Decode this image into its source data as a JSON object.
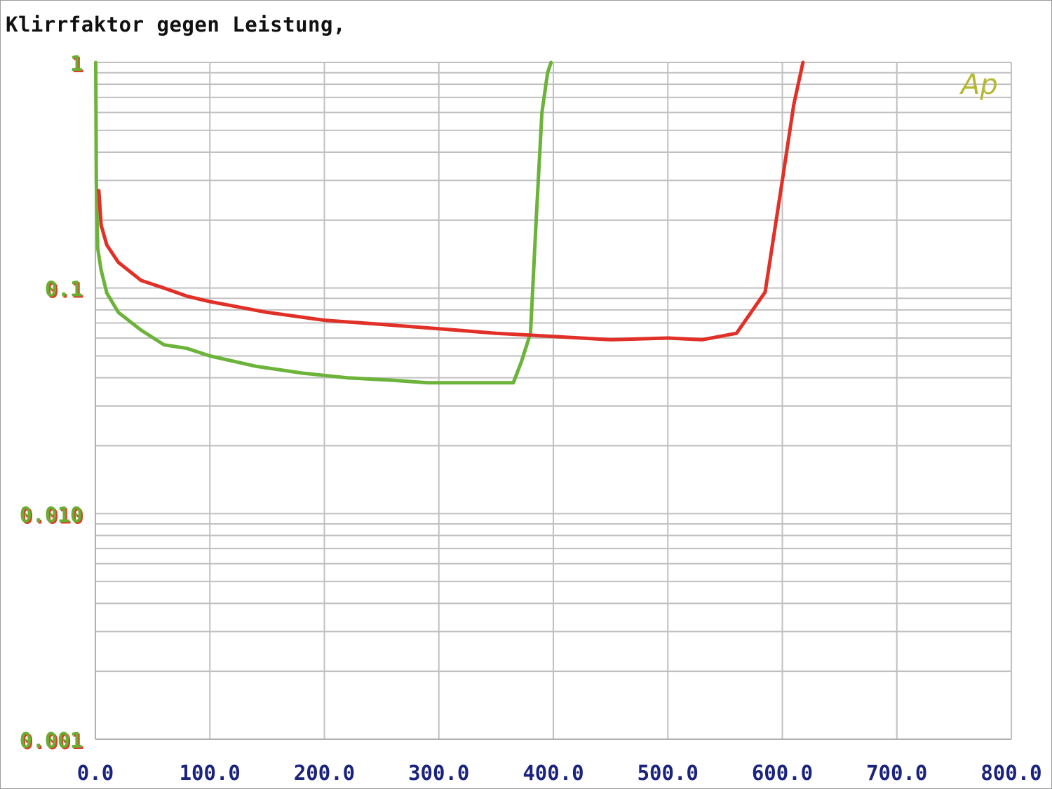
{
  "chart_data": {
    "type": "line",
    "title": "Klirrfaktor gegen Leistung,",
    "xlabel": "",
    "ylabel": "",
    "xscale": "linear",
    "yscale": "log",
    "xlim": [
      0,
      800
    ],
    "ylim": [
      0.001,
      1
    ],
    "grid": true,
    "x_ticks": [
      0,
      100,
      200,
      300,
      400,
      500,
      600,
      700,
      800
    ],
    "x_tick_labels": [
      "0.0",
      "100.0",
      "200.0",
      "300.0",
      "400.0",
      "500.0",
      "600.0",
      "700.0",
      "800.0"
    ],
    "y_ticks": [
      1,
      0.1,
      0.01,
      0.001
    ],
    "y_tick_labels": [
      "1",
      "0.1",
      "0.010",
      "0.001"
    ],
    "logo": "Ap",
    "colors": {
      "grid": "#c0c0c0",
      "ytick": "#66b030",
      "ytick_shadow": "#e03a2a",
      "xtick": "#1a237e",
      "logo": "#b5b832",
      "frame": "#9a9a9a"
    },
    "series": [
      {
        "color": "#6cb33a",
        "x": [
          0.3,
          0.8,
          2,
          5,
          10,
          20,
          40,
          60,
          80,
          100,
          140,
          180,
          220,
          260,
          290,
          365,
          372,
          380,
          385,
          390,
          395,
          398
        ],
        "y": [
          1.0,
          0.3,
          0.15,
          0.12,
          0.095,
          0.078,
          0.065,
          0.056,
          0.054,
          0.05,
          0.045,
          0.042,
          0.04,
          0.039,
          0.038,
          0.038,
          0.047,
          0.063,
          0.2,
          0.6,
          0.9,
          1.0
        ]
      },
      {
        "color": "#e03028",
        "x": [
          3,
          5,
          10,
          20,
          40,
          60,
          80,
          100,
          150,
          200,
          250,
          300,
          350,
          400,
          450,
          500,
          530,
          560,
          585,
          600,
          610,
          618
        ],
        "y": [
          0.27,
          0.19,
          0.155,
          0.13,
          0.108,
          0.1,
          0.092,
          0.087,
          0.078,
          0.072,
          0.069,
          0.066,
          0.063,
          0.061,
          0.059,
          0.06,
          0.059,
          0.063,
          0.096,
          0.3,
          0.65,
          1.0
        ]
      }
    ]
  }
}
